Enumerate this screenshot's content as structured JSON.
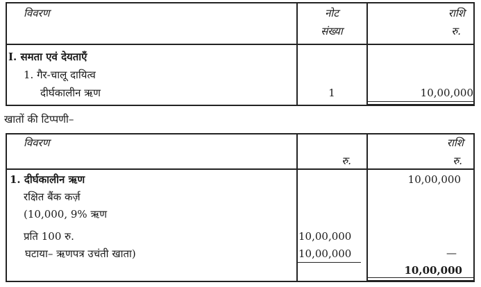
{
  "balance_sheet": {
    "headers": {
      "particulars": "विवरण",
      "note_line1": "नोट",
      "note_line2": "संख्या",
      "amount_line1": "राशि",
      "amount_line2": "रु."
    },
    "rows": [
      {
        "label": "I. समता एवं देयताएँ",
        "note": "",
        "amount": ""
      },
      {
        "label": "1. गैर-चालू दायित्व",
        "note": "",
        "amount": ""
      },
      {
        "label": "दीर्घकालीन ऋण",
        "note": "1",
        "amount": "10,00,000"
      }
    ]
  },
  "notes_heading": "खातों की टिप्पणी–",
  "notes_table": {
    "headers": {
      "particulars": "विवरण",
      "col2_currency": "रु.",
      "amount_line1": "राशि",
      "amount_line2": "रु."
    },
    "rows": [
      {
        "label": "1.  दीर्घकालीन ऋण",
        "col2": "",
        "amount": "10,00,000"
      },
      {
        "label": "रक्षित बैंक कर्ज़",
        "col2": "",
        "amount": ""
      },
      {
        "label": "(10,000, 9% ऋण",
        "col2": "",
        "amount": ""
      },
      {
        "label": "प्रति 100 रु.",
        "col2": "10,00,000",
        "amount": ""
      },
      {
        "label": "घटाया– ऋणपत्र उचंती खाता)",
        "col2": "10,00,000",
        "amount": "—"
      },
      {
        "label": "",
        "col2": "",
        "amount": "10,00,000"
      }
    ]
  }
}
